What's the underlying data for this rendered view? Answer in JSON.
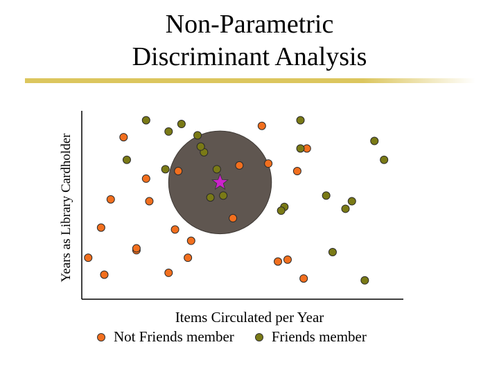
{
  "title_line1": "Non-Parametric",
  "title_line2": "Discriminant Analysis",
  "ylabel": "Years as Library Cardholder",
  "xlabel": "Items Circulated per Year",
  "legend": {
    "not_friends": "Not Friends member",
    "friends": "Friends member"
  },
  "colors": {
    "not_friends": "#f26f1e",
    "friends": "#7a7a16",
    "neighborhood": "#5f5650",
    "query_star": "#cc22cc",
    "axis": "#000000",
    "title_bar": "#dcc65e"
  },
  "chart_data": {
    "type": "scatter",
    "title": "Non-Parametric Discriminant Analysis",
    "xlabel": "Items Circulated per Year",
    "ylabel": "Years as Library Cardholder",
    "xlim": [
      0,
      100
    ],
    "ylim": [
      0,
      100
    ],
    "series": [
      {
        "name": "Not Friends member",
        "x": [
          13,
          20,
          9,
          6,
          2,
          7,
          17,
          21,
          17,
          29,
          34,
          33,
          30,
          27,
          49,
          47,
          58,
          56,
          67,
          70,
          64,
          69,
          61
        ],
        "y": [
          86,
          64,
          53,
          38,
          22,
          13,
          26,
          52,
          27,
          37,
          31,
          22,
          68,
          14,
          71,
          43,
          72,
          92,
          68,
          80,
          21,
          11,
          20
        ]
      },
      {
        "name": "Friends member",
        "x": [
          20,
          27,
          31,
          36,
          14,
          26,
          38,
          42,
          44,
          40,
          37,
          68,
          68,
          63,
          62,
          76,
          78,
          82,
          91,
          94,
          84,
          88
        ],
        "y": [
          95,
          89,
          93,
          87,
          74,
          69,
          78,
          69,
          55,
          54,
          81,
          95,
          80,
          49,
          47,
          55,
          25,
          48,
          84,
          74,
          52,
          10
        ]
      }
    ],
    "neighborhood": {
      "center": [
        43,
        62
      ],
      "radius": 16
    },
    "query_point": {
      "x": 43,
      "y": 62,
      "marker": "star"
    }
  }
}
